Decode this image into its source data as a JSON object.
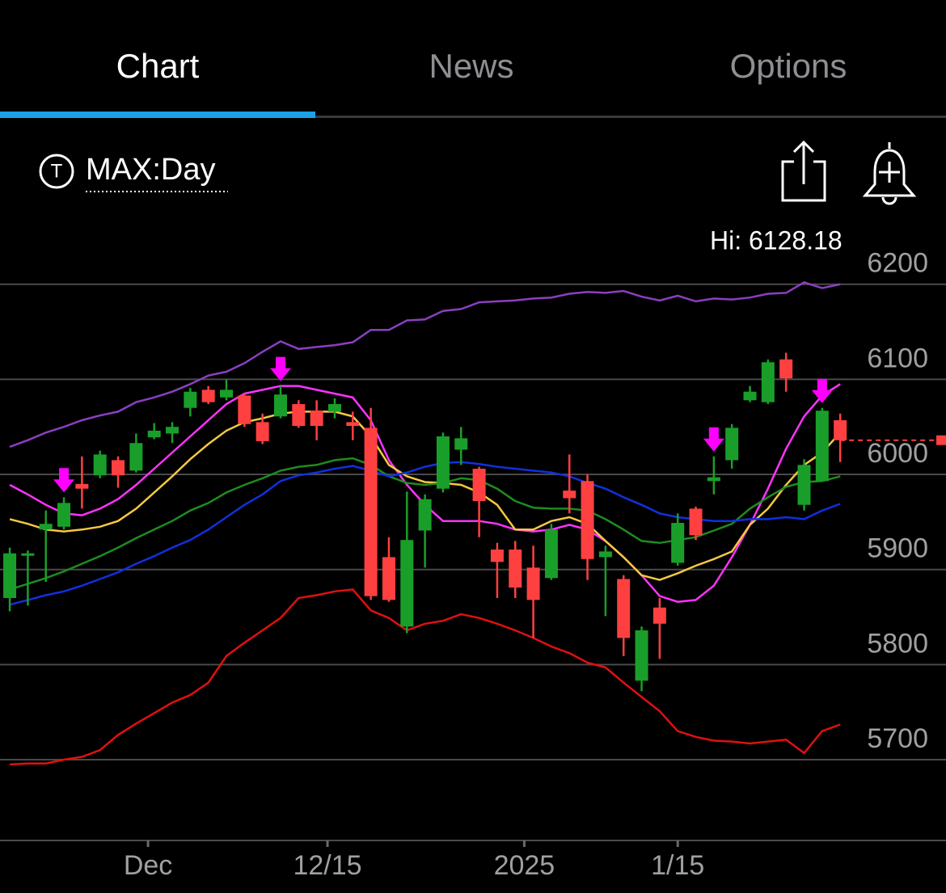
{
  "tabs": [
    "Chart",
    "News",
    "Options"
  ],
  "indicator_icon": "T",
  "period": "MAX:Day",
  "chart_data": {
    "type": "candlestick",
    "annotation": "Hi: 6128.18",
    "up_color": "#1a9e2a",
    "down_color": "#ff4040",
    "open": [
      5870,
      5915,
      5942,
      5945,
      5990,
      5999,
      6015,
      6004,
      6039,
      6043,
      6070,
      6089,
      6081,
      6083,
      6055,
      6061,
      6074,
      6067,
      6066,
      6055,
      6049,
      5913,
      5840,
      5941,
      5985,
      6026,
      6006,
      5921,
      5921,
      5902,
      5891,
      5983,
      5993,
      5913,
      5890,
      5783,
      5860,
      5907,
      5964,
      5993,
      6015,
      6078,
      6076,
      6121,
      5968,
      5993,
      6057
    ],
    "high": [
      5923,
      5920,
      5962,
      5976,
      6019,
      6025,
      6019,
      6043,
      6054,
      6055,
      6091,
      6093,
      6100,
      6086,
      6064,
      6093,
      6078,
      6078,
      6080,
      6066,
      6070,
      5934,
      5982,
      5979,
      6044,
      6050,
      6008,
      5928,
      5930,
      5925,
      5948,
      6021,
      6000,
      5925,
      5894,
      5840,
      5870,
      5959,
      5966,
      6019,
      6053,
      6093,
      6121,
      6128,
      6016,
      6070,
      6064
    ],
    "low": [
      5856,
      5862,
      5887,
      5942,
      5964,
      5996,
      5986,
      6002,
      6037,
      6033,
      6061,
      6074,
      6078,
      6050,
      6032,
      6059,
      6049,
      6036,
      6059,
      6036,
      5868,
      5866,
      5833,
      5902,
      5981,
      6010,
      5934,
      5870,
      5870,
      5828,
      5889,
      5959,
      5889,
      5851,
      5809,
      5772,
      5806,
      5904,
      5931,
      5979,
      6006,
      6076,
      6074,
      6087,
      5962,
      5993,
      6013
    ],
    "close": [
      5917,
      5917,
      5948,
      5970,
      5985,
      6021,
      5999,
      6033,
      6046,
      6050,
      6087,
      6076,
      6089,
      6053,
      6035,
      6084,
      6051,
      6051,
      6074,
      6051,
      5872,
      5868,
      5931,
      5974,
      6040,
      6038,
      5972,
      5908,
      5881,
      5868,
      5942,
      5975,
      5911,
      5919,
      5828,
      5836,
      5843,
      5949,
      5936,
      5997,
      6049,
      6087,
      6118,
      6101,
      6010,
      6067,
      6036
    ],
    "series": [
      {
        "color": "#8a3fc0",
        "values": [
          6029,
          6036,
          6044,
          6050,
          6057,
          6062,
          6066,
          6076,
          6081,
          6087,
          6095,
          6104,
          6108,
          6117,
          6129,
          6140,
          6132,
          6134,
          6136,
          6139,
          6152,
          6152,
          6162,
          6163,
          6172,
          6174,
          6181,
          6182,
          6183,
          6185,
          6186,
          6190,
          6192,
          6191,
          6193,
          6187,
          6183,
          6188,
          6182,
          6185,
          6184,
          6186,
          6190,
          6191,
          6202,
          6196,
          6200
        ]
      },
      {
        "color": "#e01010",
        "values": [
          5695,
          5696,
          5696,
          5700,
          5703,
          5710,
          5726,
          5738,
          5749,
          5760,
          5768,
          5781,
          5809,
          5823,
          5836,
          5849,
          5870,
          5873,
          5877,
          5879,
          5857,
          5849,
          5836,
          5843,
          5846,
          5853,
          5849,
          5843,
          5836,
          5828,
          5819,
          5812,
          5802,
          5797,
          5781,
          5766,
          5751,
          5730,
          5724,
          5720,
          5719,
          5717,
          5719,
          5721,
          5707,
          5730,
          5737
        ]
      },
      {
        "color": "#ff33ff",
        "values": [
          5989,
          5979,
          5968,
          5959,
          5957,
          5964,
          5974,
          5989,
          6006,
          6023,
          6040,
          6057,
          6074,
          6085,
          6089,
          6093,
          6093,
          6089,
          6085,
          6081,
          6057,
          6015,
          5989,
          5968,
          5951,
          5951,
          5951,
          5948,
          5942,
          5940,
          5942,
          5947,
          5942,
          5930,
          5913,
          5894,
          5872,
          5866,
          5868,
          5883,
          5913,
          5947,
          5985,
          6027,
          6061,
          6083,
          6095
        ]
      },
      {
        "color": "#f5c842",
        "values": [
          5953,
          5948,
          5942,
          5940,
          5942,
          5945,
          5951,
          5964,
          5981,
          5998,
          6016,
          6032,
          6046,
          6055,
          6059,
          6064,
          6066,
          6066,
          6066,
          6061,
          6040,
          6010,
          5998,
          5992,
          5991,
          5989,
          5981,
          5968,
          5942,
          5942,
          5951,
          5955,
          5948,
          5930,
          5913,
          5894,
          5889,
          5896,
          5904,
          5911,
          5919,
          5947,
          5964,
          5989,
          6010,
          6023,
          6044
        ]
      },
      {
        "color": "#1e8c1e",
        "values": [
          5879,
          5885,
          5891,
          5898,
          5906,
          5914,
          5923,
          5933,
          5942,
          5951,
          5962,
          5970,
          5981,
          5989,
          5996,
          6004,
          6008,
          6010,
          6015,
          6017,
          6010,
          5998,
          5991,
          5989,
          5991,
          5996,
          5994,
          5985,
          5972,
          5965,
          5964,
          5964,
          5962,
          5953,
          5942,
          5930,
          5928,
          5931,
          5934,
          5941,
          5948,
          5964,
          5976,
          5987,
          5992,
          5993,
          5998
        ]
      },
      {
        "color": "#1030e0",
        "values": [
          5863,
          5868,
          5873,
          5877,
          5883,
          5890,
          5897,
          5906,
          5914,
          5923,
          5931,
          5942,
          5955,
          5968,
          5979,
          5993,
          5999,
          6002,
          6006,
          6009,
          6004,
          5998,
          6002,
          6008,
          6012,
          6013,
          6011,
          6008,
          6006,
          6004,
          6002,
          5998,
          5991,
          5985,
          5976,
          5968,
          5959,
          5955,
          5953,
          5951,
          5951,
          5953,
          5953,
          5955,
          5953,
          5962,
          5969
        ]
      }
    ],
    "signals": [
      3,
      15,
      39,
      45
    ],
    "signal_color": "#ff00ff",
    "xlim": [
      -0.54,
      51.86
    ],
    "xticks": [
      {
        "value": 7.66,
        "label": "Dec"
      },
      {
        "value": 17.6,
        "label": "12/15"
      },
      {
        "value": 28.5,
        "label": "2025"
      },
      {
        "value": 37,
        "label": "1/15"
      }
    ],
    "ylim": [
      5615,
      6244
    ],
    "yticks": [
      5700,
      5800,
      5900,
      6000,
      6100,
      6200
    ],
    "grid": true
  }
}
